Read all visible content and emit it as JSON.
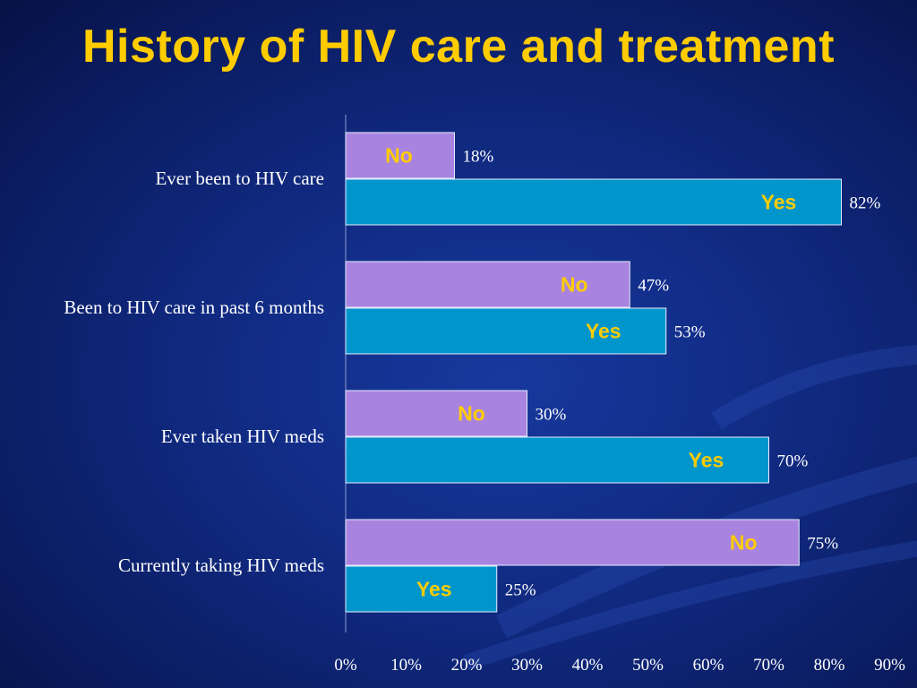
{
  "title": "History of HIV care and treatment",
  "colors": {
    "background": "#10297f",
    "title": "#ffcc00",
    "no_bar": "#a884e0",
    "yes_bar": "#0096cc",
    "bar_label": "#ffcc00",
    "text": "#ffffff"
  },
  "chart_data": {
    "type": "bar",
    "orientation": "horizontal",
    "categories": [
      "Ever been to HIV care",
      "Been to HIV care in past 6 months",
      "Ever taken HIV meds",
      "Currently taking HIV meds"
    ],
    "series": [
      {
        "name": "No",
        "values": [
          18,
          47,
          30,
          75
        ]
      },
      {
        "name": "Yes",
        "values": [
          82,
          53,
          70,
          25
        ]
      }
    ],
    "value_labels": {
      "No": [
        "18%",
        "47%",
        "30%",
        "75%"
      ],
      "Yes": [
        "82%",
        "53%",
        "70%",
        "25%"
      ]
    },
    "x_ticks": [
      "0%",
      "10%",
      "20%",
      "30%",
      "40%",
      "50%",
      "60%",
      "70%",
      "80%",
      "90%"
    ],
    "xlim": [
      0,
      90
    ],
    "grid": false,
    "legend": "none"
  }
}
